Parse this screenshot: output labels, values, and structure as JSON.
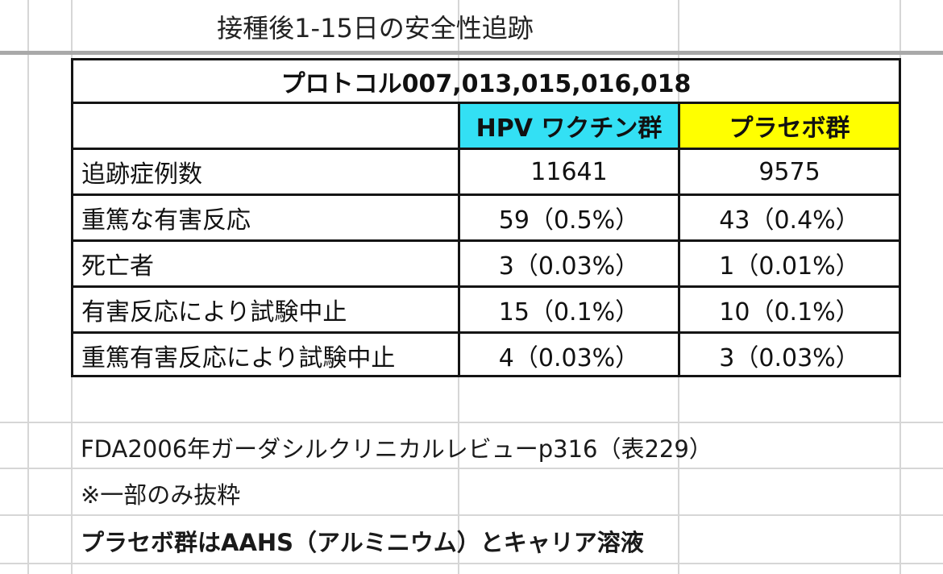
{
  "title": "接種後1-15日の安全性追跡",
  "table": {
    "protocol": "プロトコル007,013,015,016,018",
    "headers": {
      "hpv": "HPV ワクチン群",
      "placebo": "プラセボ群"
    },
    "rows": [
      {
        "label": "追跡症例数",
        "hpv": "11641",
        "placebo": "9575"
      },
      {
        "label": "重篤な有害反応",
        "hpv": "59（0.5%）",
        "placebo": "43（0.4%）"
      },
      {
        "label": "死亡者",
        "hpv": "3（0.03%）",
        "placebo": "1（0.01%）"
      },
      {
        "label": "有害反応により試験中止",
        "hpv": "15（0.1%）",
        "placebo": "10（0.1%）"
      },
      {
        "label": "重篤有害反応により試験中止",
        "hpv": "4（0.03%）",
        "placebo": "3（0.03%）"
      }
    ]
  },
  "notes": {
    "source": "FDA2006年ガーダシルクリニカルレビューp316（表229）",
    "excerpt": "※一部のみ抜粋",
    "placebo_note": "プラセボ群はAAHS（アルミニウム）とキャリア溶液"
  },
  "colors": {
    "hpv_header": "#33e0f4",
    "placebo_header": "#ffff00"
  }
}
